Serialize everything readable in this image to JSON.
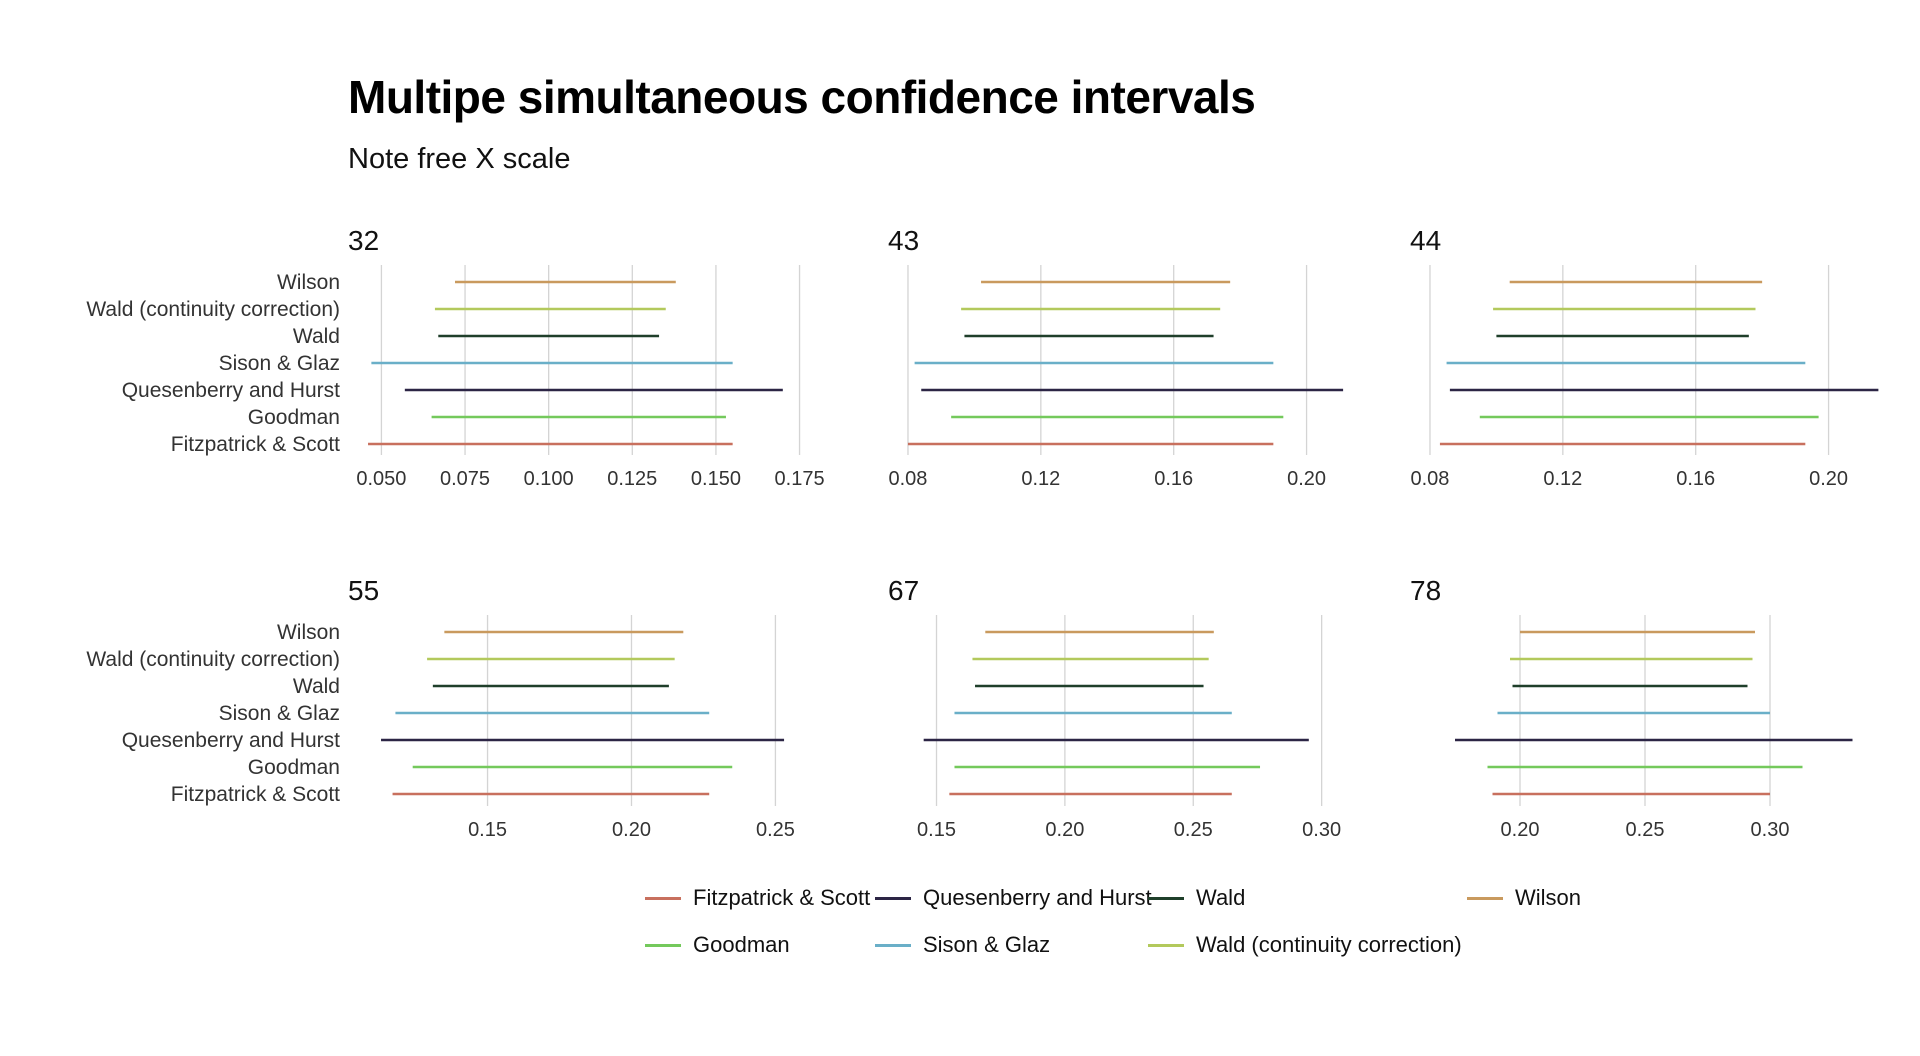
{
  "title": "Multipe simultaneous confidence intervals",
  "subtitle": "Note free X scale",
  "colors": {
    "Fitzpatrick & Scott": "#c8705e",
    "Goodman": "#74c95c",
    "Quesenberry and Hurst": "#2c2545",
    "Sison & Glaz": "#6aafc8",
    "Wald": "#1f3f2a",
    "Wald (continuity correction)": "#b3c95c",
    "Wilson": "#c99a5e"
  },
  "legend": {
    "items": [
      {
        "label": "Fitzpatrick & Scott",
        "color": "#c8705e"
      },
      {
        "label": "Quesenberry and Hurst",
        "color": "#2c2545"
      },
      {
        "label": "Wald",
        "color": "#1f3f2a"
      },
      {
        "label": "Wilson",
        "color": "#c99a5e"
      },
      {
        "label": "Goodman",
        "color": "#74c95c"
      },
      {
        "label": "Sison & Glaz",
        "color": "#6aafc8"
      },
      {
        "label": "Wald (continuity correction)",
        "color": "#b3c95c"
      }
    ]
  },
  "chart_data": {
    "type": "interval",
    "methods": [
      "Wilson",
      "Wald (continuity correction)",
      "Wald",
      "Sison & Glaz",
      "Quesenberry and Hurst",
      "Goodman",
      "Fitzpatrick & Scott"
    ],
    "panels": [
      {
        "label": "32",
        "ticks": [
          "0.050",
          "0.075",
          "0.100",
          "0.125",
          "0.150",
          "0.175"
        ],
        "xlim": [
          0.043,
          0.185
        ],
        "intervals": {
          "Wilson": [
            0.072,
            0.138
          ],
          "Wald (continuity correction)": [
            0.066,
            0.135
          ],
          "Wald": [
            0.067,
            0.133
          ],
          "Sison & Glaz": [
            0.047,
            0.155
          ],
          "Quesenberry and Hurst": [
            0.057,
            0.17
          ],
          "Goodman": [
            0.065,
            0.153
          ],
          "Fitzpatrick & Scott": [
            0.046,
            0.155
          ]
        }
      },
      {
        "label": "43",
        "ticks": [
          "0.08",
          "0.12",
          "0.16",
          "0.20"
        ],
        "xlim": [
          0.077,
          0.22
        ],
        "intervals": {
          "Wilson": [
            0.102,
            0.177
          ],
          "Wald (continuity correction)": [
            0.096,
            0.174
          ],
          "Wald": [
            0.097,
            0.172
          ],
          "Sison & Glaz": [
            0.082,
            0.19
          ],
          "Quesenberry and Hurst": [
            0.084,
            0.211
          ],
          "Goodman": [
            0.093,
            0.193
          ],
          "Fitzpatrick & Scott": [
            0.08,
            0.19
          ]
        }
      },
      {
        "label": "44",
        "ticks": [
          "0.08",
          "0.12",
          "0.16",
          "0.20"
        ],
        "xlim": [
          0.077,
          0.22
        ],
        "intervals": {
          "Wilson": [
            0.104,
            0.18
          ],
          "Wald (continuity correction)": [
            0.099,
            0.178
          ],
          "Wald": [
            0.1,
            0.176
          ],
          "Sison & Glaz": [
            0.085,
            0.193
          ],
          "Quesenberry and Hurst": [
            0.086,
            0.215
          ],
          "Goodman": [
            0.095,
            0.197
          ],
          "Fitzpatrick & Scott": [
            0.083,
            0.193
          ]
        }
      },
      {
        "label": "55",
        "ticks": [
          "0.15",
          "0.20",
          "0.25"
        ],
        "xlim": [
          0.105,
          0.27
        ],
        "intervals": {
          "Wilson": [
            0.135,
            0.218
          ],
          "Wald (continuity correction)": [
            0.129,
            0.215
          ],
          "Wald": [
            0.131,
            0.213
          ],
          "Sison & Glaz": [
            0.118,
            0.227
          ],
          "Quesenberry and Hurst": [
            0.113,
            0.253
          ],
          "Goodman": [
            0.124,
            0.235
          ],
          "Fitzpatrick & Scott": [
            0.117,
            0.227
          ]
        }
      },
      {
        "label": "67",
        "ticks": [
          "0.15",
          "0.20",
          "0.25",
          "0.30"
        ],
        "xlim": [
          0.135,
          0.32
        ],
        "intervals": {
          "Wilson": [
            0.169,
            0.258
          ],
          "Wald (continuity correction)": [
            0.164,
            0.256
          ],
          "Wald": [
            0.165,
            0.254
          ],
          "Sison & Glaz": [
            0.157,
            0.265
          ],
          "Quesenberry and Hurst": [
            0.145,
            0.295
          ],
          "Goodman": [
            0.157,
            0.276
          ],
          "Fitzpatrick & Scott": [
            0.155,
            0.265
          ]
        }
      },
      {
        "label": "78",
        "ticks": [
          "0.20",
          "0.25",
          "0.30"
        ],
        "xlim": [
          0.16,
          0.35
        ],
        "intervals": {
          "Wilson": [
            0.2,
            0.294
          ],
          "Wald (continuity correction)": [
            0.196,
            0.293
          ],
          "Wald": [
            0.197,
            0.291
          ],
          "Sison & Glaz": [
            0.191,
            0.3
          ],
          "Quesenberry and Hurst": [
            0.174,
            0.333
          ],
          "Goodman": [
            0.187,
            0.313
          ],
          "Fitzpatrick & Scott": [
            0.189,
            0.3
          ]
        }
      }
    ]
  }
}
